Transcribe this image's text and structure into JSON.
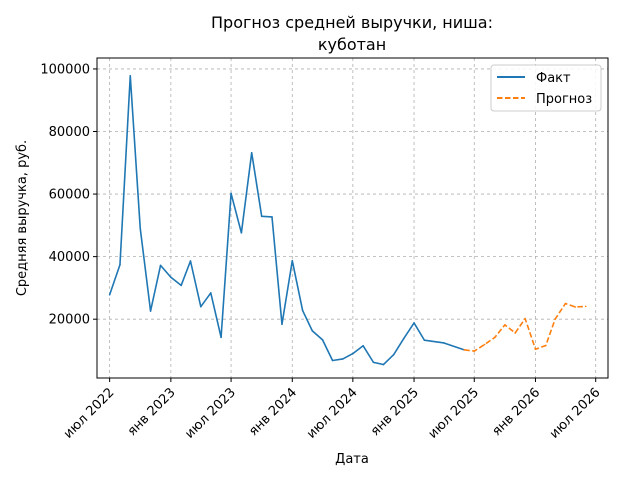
{
  "chart_data": {
    "type": "line",
    "title_lines": [
      "Прогноз средней выручки, ниша:",
      "куботан"
    ],
    "xlabel": "Дата",
    "ylabel": "Средняя выручка, руб.",
    "x_ticks": [
      {
        "date": "2022-07-01",
        "label": "июл 2022"
      },
      {
        "date": "2023-01-01",
        "label": "янв 2023"
      },
      {
        "date": "2023-07-01",
        "label": "июл 2023"
      },
      {
        "date": "2024-01-01",
        "label": "янв 2024"
      },
      {
        "date": "2024-07-01",
        "label": "июл 2024"
      },
      {
        "date": "2025-01-01",
        "label": "янв 2025"
      },
      {
        "date": "2025-07-01",
        "label": "июл 2025"
      },
      {
        "date": "2026-01-01",
        "label": "янв 2026"
      },
      {
        "date": "2026-07-01",
        "label": "июл 2026"
      }
    ],
    "y_ticks": [
      {
        "value": 20000,
        "label": "20000"
      },
      {
        "value": 40000,
        "label": "40000"
      },
      {
        "value": 60000,
        "label": "60000"
      },
      {
        "value": 80000,
        "label": "80000"
      },
      {
        "value": 100000,
        "label": "100000"
      }
    ],
    "xlim": [
      "2022-05-24",
      "2026-08-07"
    ],
    "ylim": [
      1200,
      103500
    ],
    "grid": true,
    "legend_position": "top-right",
    "series": [
      {
        "name": "Факт",
        "color": "#1f77b4",
        "style": "solid",
        "points": [
          {
            "x": "2022-07-01",
            "y": 27800
          },
          {
            "x": "2022-08-01",
            "y": 37400
          },
          {
            "x": "2022-09-01",
            "y": 97800
          },
          {
            "x": "2022-10-01",
            "y": 49000
          },
          {
            "x": "2022-11-01",
            "y": 22600
          },
          {
            "x": "2022-12-01",
            "y": 37200
          },
          {
            "x": "2023-01-01",
            "y": 33400
          },
          {
            "x": "2023-02-01",
            "y": 30800
          },
          {
            "x": "2023-03-01",
            "y": 38600
          },
          {
            "x": "2023-04-01",
            "y": 24000
          },
          {
            "x": "2023-05-01",
            "y": 28400
          },
          {
            "x": "2023-06-01",
            "y": 14200
          },
          {
            "x": "2023-07-01",
            "y": 60200
          },
          {
            "x": "2023-08-01",
            "y": 47600
          },
          {
            "x": "2023-09-01",
            "y": 73200
          },
          {
            "x": "2023-10-01",
            "y": 52900
          },
          {
            "x": "2023-11-01",
            "y": 52700
          },
          {
            "x": "2023-12-01",
            "y": 18400
          },
          {
            "x": "2024-01-01",
            "y": 38700
          },
          {
            "x": "2024-02-01",
            "y": 22800
          },
          {
            "x": "2024-03-01",
            "y": 16300
          },
          {
            "x": "2024-04-01",
            "y": 13400
          },
          {
            "x": "2024-05-01",
            "y": 6800
          },
          {
            "x": "2024-06-01",
            "y": 7300
          },
          {
            "x": "2024-07-01",
            "y": 9000
          },
          {
            "x": "2024-08-01",
            "y": 11500
          },
          {
            "x": "2024-09-01",
            "y": 6200
          },
          {
            "x": "2024-10-01",
            "y": 5500
          },
          {
            "x": "2024-11-01",
            "y": 8700
          },
          {
            "x": "2024-12-01",
            "y": 13800
          },
          {
            "x": "2025-01-01",
            "y": 18800
          },
          {
            "x": "2025-02-01",
            "y": 13300
          },
          {
            "x": "2025-04-01",
            "y": 12400
          },
          {
            "x": "2025-06-01",
            "y": 10200
          }
        ]
      },
      {
        "name": "Прогноз",
        "color": "#ff7f0e",
        "style": "dashed",
        "points": [
          {
            "x": "2025-06-01",
            "y": 10200
          },
          {
            "x": "2025-07-01",
            "y": 9800
          },
          {
            "x": "2025-08-01",
            "y": 11900
          },
          {
            "x": "2025-09-01",
            "y": 14200
          },
          {
            "x": "2025-10-01",
            "y": 18200
          },
          {
            "x": "2025-11-01",
            "y": 15600
          },
          {
            "x": "2025-12-01",
            "y": 20200
          },
          {
            "x": "2026-01-01",
            "y": 10400
          },
          {
            "x": "2026-02-01",
            "y": 11600
          },
          {
            "x": "2026-03-01",
            "y": 20000
          },
          {
            "x": "2026-04-01",
            "y": 25000
          },
          {
            "x": "2026-05-01",
            "y": 23900
          },
          {
            "x": "2026-06-01",
            "y": 24100
          }
        ]
      }
    ]
  }
}
